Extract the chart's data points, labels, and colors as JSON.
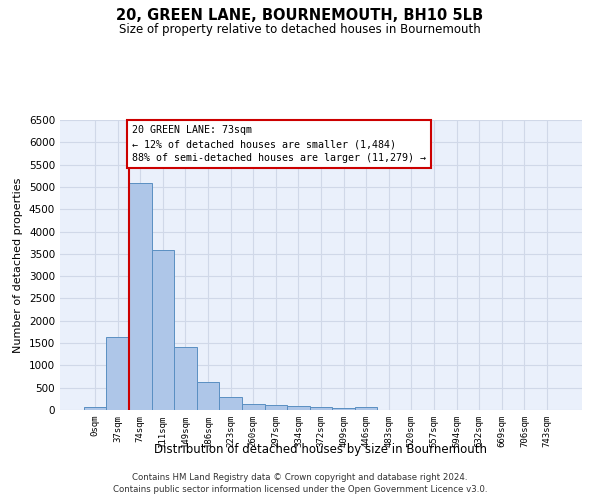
{
  "title": "20, GREEN LANE, BOURNEMOUTH, BH10 5LB",
  "subtitle": "Size of property relative to detached houses in Bournemouth",
  "xlabel": "Distribution of detached houses by size in Bournemouth",
  "ylabel": "Number of detached properties",
  "footer1": "Contains HM Land Registry data © Crown copyright and database right 2024.",
  "footer2": "Contains public sector information licensed under the Open Government Licence v3.0.",
  "bar_labels": [
    "0sqm",
    "37sqm",
    "74sqm",
    "111sqm",
    "149sqm",
    "186sqm",
    "223sqm",
    "260sqm",
    "297sqm",
    "334sqm",
    "372sqm",
    "409sqm",
    "446sqm",
    "483sqm",
    "520sqm",
    "557sqm",
    "594sqm",
    "632sqm",
    "669sqm",
    "706sqm",
    "743sqm"
  ],
  "bar_values": [
    70,
    1640,
    5080,
    3580,
    1420,
    630,
    290,
    140,
    110,
    80,
    70,
    50,
    70,
    0,
    0,
    0,
    0,
    0,
    0,
    0,
    0
  ],
  "bar_color": "#aec6e8",
  "bar_edge_color": "#5a8fc2",
  "annotation_title": "20 GREEN LANE: 73sqm",
  "annotation_line1": "← 12% of detached houses are smaller (1,484)",
  "annotation_line2": "88% of semi-detached houses are larger (11,279) →",
  "annotation_box_color": "#ffffff",
  "annotation_box_edge": "#cc0000",
  "vline_color": "#cc0000",
  "ylim": [
    0,
    6500
  ],
  "yticks": [
    0,
    500,
    1000,
    1500,
    2000,
    2500,
    3000,
    3500,
    4000,
    4500,
    5000,
    5500,
    6000,
    6500
  ],
  "grid_color": "#d0d8e8",
  "bg_color": "#eaf0fb"
}
